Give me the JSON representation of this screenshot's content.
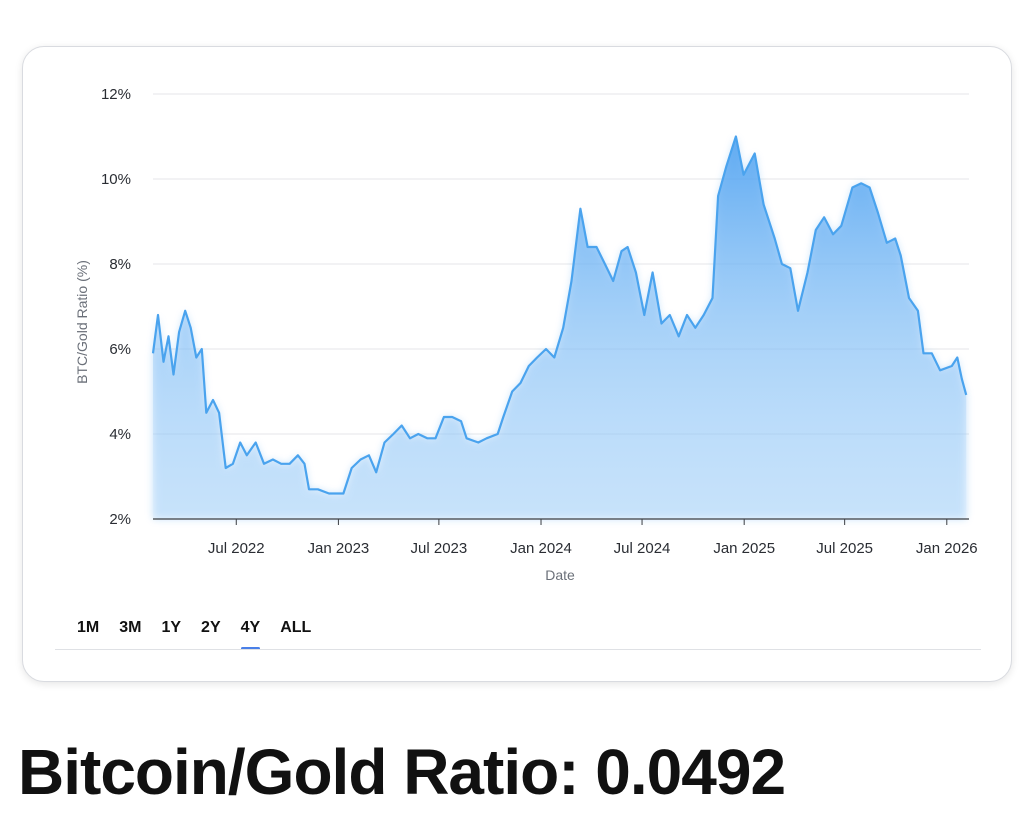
{
  "chart_data": {
    "type": "area",
    "title": "",
    "xlabel": "Date",
    "ylabel": "BTC/Gold Ratio (%)",
    "ylim": [
      2,
      12
    ],
    "y_ticks": [
      "2%",
      "4%",
      "6%",
      "8%",
      "10%",
      "12%"
    ],
    "x_ticks": [
      "Jul 2022",
      "Jan 2023",
      "Jul 2023",
      "Jan 2024",
      "Jul 2024",
      "Jan 2025",
      "Jul 2025",
      "Jan 2026"
    ],
    "x_range": [
      "2022-02-01",
      "2026-02-10"
    ],
    "grid": true,
    "line_color": "#4aa3ee",
    "fill_color": "#5aaaf2",
    "series": [
      {
        "values": [
          [
            "2022-02-01",
            5.9
          ],
          [
            "2022-02-10",
            6.8
          ],
          [
            "2022-02-20",
            5.7
          ],
          [
            "2022-03-01",
            6.3
          ],
          [
            "2022-03-10",
            5.4
          ],
          [
            "2022-03-20",
            6.4
          ],
          [
            "2022-03-31",
            6.9
          ],
          [
            "2022-04-10",
            6.5
          ],
          [
            "2022-04-20",
            5.8
          ],
          [
            "2022-04-30",
            6.0
          ],
          [
            "2022-05-08",
            4.5
          ],
          [
            "2022-05-20",
            4.8
          ],
          [
            "2022-05-31",
            4.5
          ],
          [
            "2022-06-12",
            3.2
          ],
          [
            "2022-06-25",
            3.3
          ],
          [
            "2022-07-08",
            3.8
          ],
          [
            "2022-07-20",
            3.5
          ],
          [
            "2022-08-05",
            3.8
          ],
          [
            "2022-08-20",
            3.3
          ],
          [
            "2022-09-05",
            3.4
          ],
          [
            "2022-09-20",
            3.3
          ],
          [
            "2022-10-05",
            3.3
          ],
          [
            "2022-10-20",
            3.5
          ],
          [
            "2022-11-01",
            3.3
          ],
          [
            "2022-11-09",
            2.7
          ],
          [
            "2022-11-25",
            2.7
          ],
          [
            "2022-12-15",
            2.6
          ],
          [
            "2023-01-10",
            2.6
          ],
          [
            "2023-01-25",
            3.2
          ],
          [
            "2023-02-10",
            3.4
          ],
          [
            "2023-02-25",
            3.5
          ],
          [
            "2023-03-10",
            3.1
          ],
          [
            "2023-03-25",
            3.8
          ],
          [
            "2023-04-10",
            4.0
          ],
          [
            "2023-04-25",
            4.2
          ],
          [
            "2023-05-10",
            3.9
          ],
          [
            "2023-05-25",
            4.0
          ],
          [
            "2023-06-10",
            3.9
          ],
          [
            "2023-06-25",
            3.9
          ],
          [
            "2023-07-10",
            4.4
          ],
          [
            "2023-07-25",
            4.4
          ],
          [
            "2023-08-10",
            4.3
          ],
          [
            "2023-08-20",
            3.9
          ],
          [
            "2023-09-10",
            3.8
          ],
          [
            "2023-09-25",
            3.9
          ],
          [
            "2023-10-15",
            4.0
          ],
          [
            "2023-10-25",
            4.4
          ],
          [
            "2023-11-10",
            5.0
          ],
          [
            "2023-11-25",
            5.2
          ],
          [
            "2023-12-10",
            5.6
          ],
          [
            "2023-12-25",
            5.8
          ],
          [
            "2024-01-10",
            6.0
          ],
          [
            "2024-01-25",
            5.8
          ],
          [
            "2024-02-10",
            6.5
          ],
          [
            "2024-02-25",
            7.6
          ],
          [
            "2024-03-12",
            9.3
          ],
          [
            "2024-03-25",
            8.4
          ],
          [
            "2024-04-10",
            8.4
          ],
          [
            "2024-04-25",
            8.0
          ],
          [
            "2024-05-10",
            7.6
          ],
          [
            "2024-05-25",
            8.3
          ],
          [
            "2024-06-05",
            8.4
          ],
          [
            "2024-06-20",
            7.8
          ],
          [
            "2024-07-05",
            6.8
          ],
          [
            "2024-07-20",
            7.8
          ],
          [
            "2024-08-05",
            6.6
          ],
          [
            "2024-08-20",
            6.8
          ],
          [
            "2024-09-05",
            6.3
          ],
          [
            "2024-09-20",
            6.8
          ],
          [
            "2024-10-05",
            6.5
          ],
          [
            "2024-10-20",
            6.8
          ],
          [
            "2024-11-05",
            7.2
          ],
          [
            "2024-11-15",
            9.6
          ],
          [
            "2024-11-30",
            10.3
          ],
          [
            "2024-12-17",
            11.0
          ],
          [
            "2024-12-31",
            10.1
          ],
          [
            "2025-01-20",
            10.6
          ],
          [
            "2025-02-05",
            9.4
          ],
          [
            "2025-02-25",
            8.6
          ],
          [
            "2025-03-10",
            8.0
          ],
          [
            "2025-03-25",
            7.9
          ],
          [
            "2025-04-08",
            6.9
          ],
          [
            "2025-04-25",
            7.8
          ],
          [
            "2025-05-10",
            8.8
          ],
          [
            "2025-05-25",
            9.1
          ],
          [
            "2025-06-10",
            8.7
          ],
          [
            "2025-06-25",
            8.9
          ],
          [
            "2025-07-15",
            9.8
          ],
          [
            "2025-07-31",
            9.9
          ],
          [
            "2025-08-15",
            9.8
          ],
          [
            "2025-08-30",
            9.2
          ],
          [
            "2025-09-15",
            8.5
          ],
          [
            "2025-09-30",
            8.6
          ],
          [
            "2025-10-10",
            8.2
          ],
          [
            "2025-10-25",
            7.2
          ],
          [
            "2025-11-10",
            6.9
          ],
          [
            "2025-11-20",
            5.9
          ],
          [
            "2025-12-05",
            5.9
          ],
          [
            "2025-12-20",
            5.5
          ],
          [
            "2026-01-10",
            5.6
          ],
          [
            "2026-01-20",
            5.8
          ],
          [
            "2026-01-28",
            5.3
          ],
          [
            "2026-02-05",
            4.92
          ]
        ]
      }
    ]
  },
  "range_tabs": {
    "items": [
      "1M",
      "3M",
      "1Y",
      "2Y",
      "4Y",
      "ALL"
    ],
    "active": "4Y"
  },
  "headline": {
    "text": "Bitcoin/Gold Ratio: 0.0492"
  }
}
